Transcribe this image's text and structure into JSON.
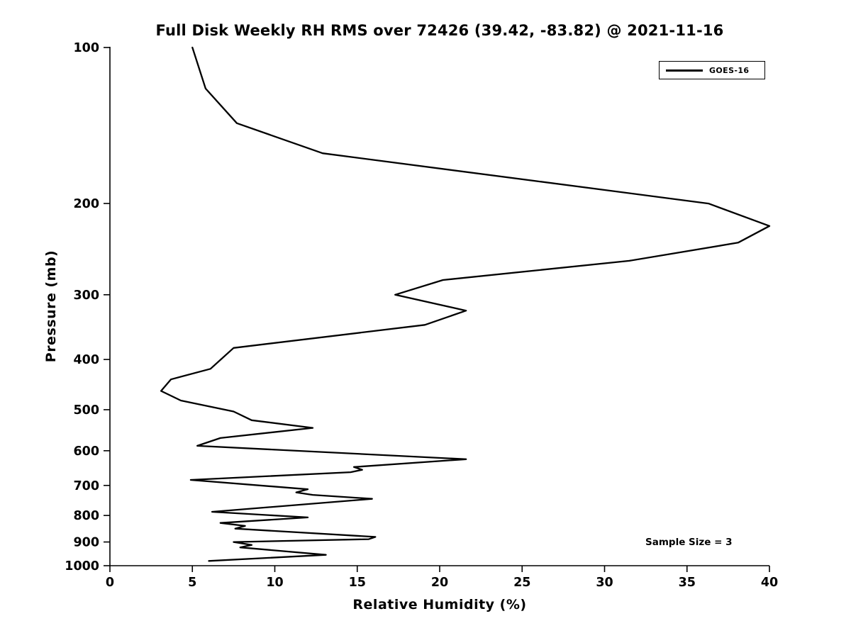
{
  "title": "Full Disk Weekly RH RMS over 72426 (39.42, -83.82) @ 2021-11-16",
  "legend": {
    "label": "GOES-16"
  },
  "annotation": {
    "text": "Sample Size = 3"
  },
  "axes": {
    "xlabel": "Relative Humidity (%)",
    "ylabel": "Pressure (mb)"
  },
  "chart_data": {
    "type": "line",
    "title": "Full Disk Weekly RH RMS over 72426 (39.42, -83.82) @ 2021-11-16",
    "xlabel": "Relative Humidity (%)",
    "ylabel": "Pressure (mb)",
    "xlim": [
      0,
      40
    ],
    "ylim": [
      100,
      1000
    ],
    "y_scale": "log",
    "y_inverted": true,
    "grid": false,
    "x_ticks": [
      0,
      5,
      10,
      15,
      20,
      25,
      30,
      35,
      40
    ],
    "y_ticks": [
      100,
      200,
      300,
      400,
      500,
      600,
      700,
      800,
      900,
      1000
    ],
    "legend_position": "upper right",
    "line_color": "#000000",
    "series": [
      {
        "name": "GOES-16",
        "color": "#000000",
        "points_format": "[pressure_mb, relative_humidity_pct]",
        "points": [
          [
            100,
            5.0
          ],
          [
            120,
            5.8
          ],
          [
            140,
            7.7
          ],
          [
            160,
            12.9
          ],
          [
            200,
            36.3
          ],
          [
            221,
            40.0
          ],
          [
            238,
            38.1
          ],
          [
            258,
            31.5
          ],
          [
            281,
            20.2
          ],
          [
            300,
            17.3
          ],
          [
            322,
            21.6
          ],
          [
            343,
            19.1
          ],
          [
            380,
            7.5
          ],
          [
            417,
            6.1
          ],
          [
            437,
            3.7
          ],
          [
            460,
            3.1
          ],
          [
            480,
            4.3
          ],
          [
            504,
            7.5
          ],
          [
            524,
            8.6
          ],
          [
            542,
            12.3
          ],
          [
            567,
            6.7
          ],
          [
            587,
            5.3
          ],
          [
            623,
            21.6
          ],
          [
            645,
            14.8
          ],
          [
            653,
            15.3
          ],
          [
            660,
            14.6
          ],
          [
            683,
            4.9
          ],
          [
            712,
            12.0
          ],
          [
            722,
            11.3
          ],
          [
            730,
            12.3
          ],
          [
            743,
            15.9
          ],
          [
            787,
            6.2
          ],
          [
            807,
            12.0
          ],
          [
            827,
            6.7
          ],
          [
            838,
            8.2
          ],
          [
            848,
            7.6
          ],
          [
            880,
            16.1
          ],
          [
            889,
            15.7
          ],
          [
            900,
            7.5
          ],
          [
            912,
            8.6
          ],
          [
            922,
            7.9
          ],
          [
            953,
            13.1
          ],
          [
            979,
            6.0
          ]
        ]
      }
    ],
    "annotations": [
      {
        "text": "Sample Size = 3",
        "x_pct": 32.5,
        "y_mb": 890
      }
    ]
  }
}
